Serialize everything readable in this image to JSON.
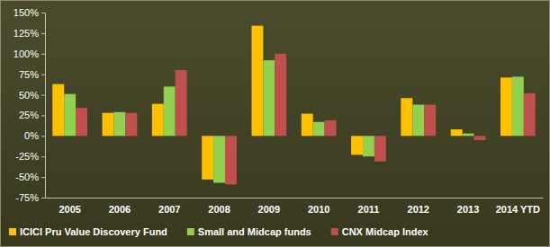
{
  "chart_data": {
    "type": "bar",
    "categories": [
      "2005",
      "2006",
      "2007",
      "2008",
      "2009",
      "2010",
      "2011",
      "2012",
      "2013",
      "2014 YTD"
    ],
    "series": [
      {
        "name": "ICICI Pru Value Discovery Fund",
        "color": "#ffc000",
        "values": [
          63,
          28,
          39,
          -53,
          134,
          27,
          -23,
          46,
          8,
          71
        ]
      },
      {
        "name": "Small and Midcap funds",
        "color": "#92d050",
        "values": [
          51,
          29,
          60,
          -57,
          92,
          17,
          -25,
          38,
          3,
          72
        ]
      },
      {
        "name": "CNX Midcap Index",
        "color": "#c0504d",
        "values": [
          34,
          28,
          80,
          -59,
          100,
          19,
          -31,
          38,
          -5,
          52
        ]
      }
    ],
    "ylim": [
      -75,
      150
    ],
    "yticks": [
      {
        "value": -75,
        "label": "-75%"
      },
      {
        "value": -50,
        "label": "-50%"
      },
      {
        "value": -25,
        "label": "-25%"
      },
      {
        "value": 0,
        "label": "0%"
      },
      {
        "value": 25,
        "label": "25%"
      },
      {
        "value": 50,
        "label": "50%"
      },
      {
        "value": 75,
        "label": "75%"
      },
      {
        "value": 100,
        "label": "100%"
      },
      {
        "value": 125,
        "label": "125%"
      },
      {
        "value": 150,
        "label": "150%"
      }
    ],
    "grid": false,
    "legend": "bottom"
  }
}
